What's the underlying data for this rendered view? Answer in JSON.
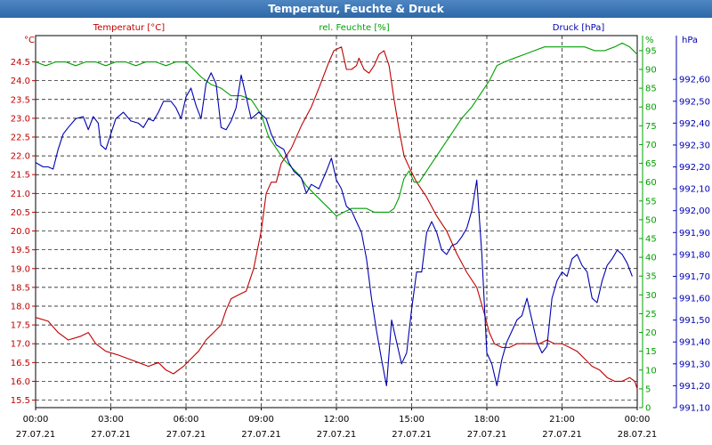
{
  "window_title": "Temperatur, Feuchte & Druck",
  "chart_data": {
    "type": "line",
    "title": "Temperatur, Feuchte & Druck",
    "x_unit": "hours since 27.07.21 00:00",
    "x_ticks": [
      {
        "time": "00:00",
        "date": "27.07.21"
      },
      {
        "time": "03:00",
        "date": "27.07.21"
      },
      {
        "time": "06:00",
        "date": "27.07.21"
      },
      {
        "time": "09:00",
        "date": "27.07.21"
      },
      {
        "time": "12:00",
        "date": "27.07.21"
      },
      {
        "time": "15:00",
        "date": "27.07.21"
      },
      {
        "time": "18:00",
        "date": "27.07.21"
      },
      {
        "time": "21:00",
        "date": "27.07.21"
      },
      {
        "time": "00:00",
        "date": "28.07.21"
      }
    ],
    "xlim": [
      0,
      24
    ],
    "axes": {
      "left": {
        "unit": "°C",
        "label": "Temperatur [°C]",
        "ylim": [
          15.3,
          25.2
        ],
        "ticks": [
          "15.5",
          "16.0",
          "16.5",
          "17.0",
          "17.5",
          "18.0",
          "18.5",
          "19.0",
          "19.5",
          "20.0",
          "20.5",
          "21.0",
          "21.5",
          "22.0",
          "22.5",
          "23.0",
          "23.5",
          "24.0",
          "24.5"
        ],
        "color": "#c00000"
      },
      "mid": {
        "unit": "%",
        "label": "rel. Feuchte [%]",
        "ylim": [
          0,
          99
        ],
        "ticks": [
          "0",
          "5",
          "10",
          "15",
          "20",
          "25",
          "30",
          "35",
          "40",
          "45",
          "50",
          "55",
          "60",
          "65",
          "70",
          "75",
          "80",
          "85",
          "90",
          "95"
        ],
        "color": "#00a000"
      },
      "right": {
        "unit": "hPa",
        "label": "Druck [hPa]",
        "ylim": [
          991.1,
          992.8
        ],
        "ticks": [
          "991,10",
          "991,20",
          "991,30",
          "991,40",
          "991,50",
          "991,60",
          "991,70",
          "991,80",
          "991,90",
          "992,00",
          "992,10",
          "992,20",
          "992,30",
          "992,40",
          "992,50",
          "992,60"
        ],
        "color": "#0000b0"
      }
    },
    "grid": true,
    "series": [
      {
        "name": "Temperatur [°C]",
        "axis": "left",
        "color": "#c00000",
        "points": [
          [
            0,
            17.7
          ],
          [
            0.5,
            17.6
          ],
          [
            0.9,
            17.3
          ],
          [
            1.3,
            17.1
          ],
          [
            1.8,
            17.2
          ],
          [
            2.1,
            17.3
          ],
          [
            2.4,
            17.0
          ],
          [
            2.8,
            16.8
          ],
          [
            3.3,
            16.7
          ],
          [
            3.7,
            16.6
          ],
          [
            4.1,
            16.5
          ],
          [
            4.5,
            16.4
          ],
          [
            4.9,
            16.5
          ],
          [
            5.2,
            16.3
          ],
          [
            5.5,
            16.2
          ],
          [
            5.9,
            16.4
          ],
          [
            6.2,
            16.6
          ],
          [
            6.5,
            16.8
          ],
          [
            6.8,
            17.1
          ],
          [
            7.1,
            17.3
          ],
          [
            7.4,
            17.5
          ],
          [
            7.6,
            17.9
          ],
          [
            7.8,
            18.2
          ],
          [
            8.1,
            18.3
          ],
          [
            8.4,
            18.4
          ],
          [
            8.7,
            19.0
          ],
          [
            9.0,
            20.0
          ],
          [
            9.2,
            21.0
          ],
          [
            9.4,
            21.3
          ],
          [
            9.6,
            21.3
          ],
          [
            9.8,
            21.8
          ],
          [
            10.2,
            22.2
          ],
          [
            10.6,
            22.8
          ],
          [
            11.0,
            23.3
          ],
          [
            11.3,
            23.8
          ],
          [
            11.7,
            24.5
          ],
          [
            11.9,
            24.8
          ],
          [
            12.2,
            24.9
          ],
          [
            12.4,
            24.3
          ],
          [
            12.6,
            24.3
          ],
          [
            12.8,
            24.4
          ],
          [
            12.9,
            24.6
          ],
          [
            13.1,
            24.3
          ],
          [
            13.3,
            24.2
          ],
          [
            13.5,
            24.4
          ],
          [
            13.7,
            24.7
          ],
          [
            13.9,
            24.8
          ],
          [
            14.1,
            24.4
          ],
          [
            14.3,
            23.5
          ],
          [
            14.5,
            22.7
          ],
          [
            14.7,
            22.0
          ],
          [
            14.9,
            21.7
          ],
          [
            15.2,
            21.3
          ],
          [
            15.6,
            20.9
          ],
          [
            16.0,
            20.4
          ],
          [
            16.4,
            20.0
          ],
          [
            16.8,
            19.4
          ],
          [
            17.2,
            18.9
          ],
          [
            17.6,
            18.5
          ],
          [
            17.9,
            17.8
          ],
          [
            18.1,
            17.3
          ],
          [
            18.3,
            17.0
          ],
          [
            18.6,
            16.9
          ],
          [
            18.9,
            16.9
          ],
          [
            19.2,
            17.0
          ],
          [
            19.5,
            17.0
          ],
          [
            19.8,
            17.0
          ],
          [
            20.1,
            17.0
          ],
          [
            20.4,
            17.1
          ],
          [
            20.7,
            17.0
          ],
          [
            21.0,
            17.0
          ],
          [
            21.3,
            16.9
          ],
          [
            21.6,
            16.8
          ],
          [
            21.9,
            16.6
          ],
          [
            22.2,
            16.4
          ],
          [
            22.5,
            16.3
          ],
          [
            22.8,
            16.1
          ],
          [
            23.1,
            16.0
          ],
          [
            23.4,
            16.0
          ],
          [
            23.7,
            16.1
          ],
          [
            23.9,
            16.0
          ],
          [
            24.0,
            15.8
          ]
        ]
      },
      {
        "name": "rel. Feuchte [%]",
        "axis": "mid",
        "color": "#00a000",
        "points": [
          [
            0,
            92
          ],
          [
            0.4,
            91
          ],
          [
            0.8,
            92
          ],
          [
            1.2,
            92
          ],
          [
            1.6,
            91
          ],
          [
            2.0,
            92
          ],
          [
            2.4,
            92
          ],
          [
            2.8,
            91
          ],
          [
            3.2,
            92
          ],
          [
            3.6,
            92
          ],
          [
            4.0,
            91
          ],
          [
            4.4,
            92
          ],
          [
            4.8,
            92
          ],
          [
            5.2,
            91
          ],
          [
            5.6,
            92
          ],
          [
            6.0,
            92
          ],
          [
            6.3,
            90
          ],
          [
            6.6,
            88
          ],
          [
            7.0,
            86
          ],
          [
            7.4,
            85
          ],
          [
            7.8,
            83
          ],
          [
            8.2,
            83
          ],
          [
            8.6,
            82
          ],
          [
            9.0,
            78
          ],
          [
            9.3,
            72
          ],
          [
            9.6,
            69
          ],
          [
            9.9,
            66
          ],
          [
            10.2,
            64
          ],
          [
            10.5,
            62
          ],
          [
            10.8,
            59
          ],
          [
            11.1,
            57
          ],
          [
            11.4,
            55
          ],
          [
            11.7,
            53
          ],
          [
            12.0,
            51
          ],
          [
            12.3,
            52
          ],
          [
            12.6,
            53
          ],
          [
            12.9,
            53
          ],
          [
            13.2,
            53
          ],
          [
            13.5,
            52
          ],
          [
            13.8,
            52
          ],
          [
            14.1,
            52
          ],
          [
            14.3,
            53
          ],
          [
            14.5,
            56
          ],
          [
            14.7,
            61
          ],
          [
            14.9,
            63
          ],
          [
            15.1,
            60
          ],
          [
            15.3,
            60
          ],
          [
            15.5,
            62
          ],
          [
            15.8,
            65
          ],
          [
            16.2,
            69
          ],
          [
            16.6,
            73
          ],
          [
            17.0,
            77
          ],
          [
            17.4,
            80
          ],
          [
            17.8,
            84
          ],
          [
            18.1,
            87
          ],
          [
            18.4,
            91
          ],
          [
            18.7,
            92
          ],
          [
            19.1,
            93
          ],
          [
            19.5,
            94
          ],
          [
            19.9,
            95
          ],
          [
            20.3,
            96
          ],
          [
            20.7,
            96
          ],
          [
            21.1,
            96
          ],
          [
            21.5,
            96
          ],
          [
            21.9,
            96
          ],
          [
            22.3,
            95
          ],
          [
            22.7,
            95
          ],
          [
            23.1,
            96
          ],
          [
            23.4,
            97
          ],
          [
            23.7,
            96
          ],
          [
            24.0,
            94
          ]
        ]
      },
      {
        "name": "Druck [hPa]",
        "axis": "right",
        "color": "#0000b0",
        "points": [
          [
            0,
            992.22
          ],
          [
            0.3,
            992.2
          ],
          [
            0.5,
            992.2
          ],
          [
            0.7,
            992.19
          ],
          [
            0.9,
            992.28
          ],
          [
            1.1,
            992.35
          ],
          [
            1.3,
            992.38
          ],
          [
            1.6,
            992.42
          ],
          [
            1.9,
            992.43
          ],
          [
            2.1,
            992.37
          ],
          [
            2.3,
            992.43
          ],
          [
            2.5,
            992.4
          ],
          [
            2.6,
            992.3
          ],
          [
            2.8,
            992.28
          ],
          [
            3.0,
            992.35
          ],
          [
            3.2,
            992.42
          ],
          [
            3.5,
            992.45
          ],
          [
            3.8,
            992.41
          ],
          [
            4.1,
            992.4
          ],
          [
            4.3,
            992.38
          ],
          [
            4.5,
            992.42
          ],
          [
            4.7,
            992.41
          ],
          [
            4.9,
            992.45
          ],
          [
            5.1,
            992.5
          ],
          [
            5.4,
            992.5
          ],
          [
            5.6,
            992.47
          ],
          [
            5.8,
            992.42
          ],
          [
            6.0,
            992.52
          ],
          [
            6.2,
            992.56
          ],
          [
            6.4,
            992.48
          ],
          [
            6.6,
            992.42
          ],
          [
            6.8,
            992.58
          ],
          [
            7.0,
            992.63
          ],
          [
            7.2,
            992.58
          ],
          [
            7.4,
            992.38
          ],
          [
            7.6,
            992.37
          ],
          [
            7.8,
            992.41
          ],
          [
            8.0,
            992.47
          ],
          [
            8.2,
            992.62
          ],
          [
            8.4,
            992.52
          ],
          [
            8.6,
            992.42
          ],
          [
            8.9,
            992.45
          ],
          [
            9.2,
            992.42
          ],
          [
            9.4,
            992.35
          ],
          [
            9.6,
            992.3
          ],
          [
            9.9,
            992.28
          ],
          [
            10.1,
            992.22
          ],
          [
            10.3,
            992.18
          ],
          [
            10.6,
            992.15
          ],
          [
            10.8,
            992.08
          ],
          [
            11.0,
            992.12
          ],
          [
            11.3,
            992.1
          ],
          [
            11.6,
            992.18
          ],
          [
            11.8,
            992.24
          ],
          [
            12.0,
            992.14
          ],
          [
            12.2,
            992.1
          ],
          [
            12.4,
            992.02
          ],
          [
            12.6,
            992.0
          ],
          [
            12.8,
            991.95
          ],
          [
            13.0,
            991.9
          ],
          [
            13.2,
            991.78
          ],
          [
            13.4,
            991.6
          ],
          [
            13.6,
            991.45
          ],
          [
            13.8,
            991.32
          ],
          [
            14.0,
            991.2
          ],
          [
            14.2,
            991.5
          ],
          [
            14.4,
            991.4
          ],
          [
            14.6,
            991.3
          ],
          [
            14.8,
            991.35
          ],
          [
            15.0,
            991.55
          ],
          [
            15.2,
            991.72
          ],
          [
            15.4,
            991.72
          ],
          [
            15.6,
            991.9
          ],
          [
            15.8,
            991.95
          ],
          [
            16.0,
            991.9
          ],
          [
            16.2,
            991.82
          ],
          [
            16.4,
            991.8
          ],
          [
            16.6,
            991.84
          ],
          [
            16.8,
            991.85
          ],
          [
            17.0,
            991.88
          ],
          [
            17.2,
            991.92
          ],
          [
            17.4,
            992.0
          ],
          [
            17.6,
            992.14
          ],
          [
            17.8,
            991.8
          ],
          [
            18.0,
            991.35
          ],
          [
            18.2,
            991.3
          ],
          [
            18.4,
            991.2
          ],
          [
            18.6,
            991.32
          ],
          [
            18.8,
            991.4
          ],
          [
            19.0,
            991.45
          ],
          [
            19.2,
            991.5
          ],
          [
            19.4,
            991.52
          ],
          [
            19.6,
            991.6
          ],
          [
            19.8,
            991.5
          ],
          [
            20.0,
            991.4
          ],
          [
            20.2,
            991.35
          ],
          [
            20.4,
            991.38
          ],
          [
            20.6,
            991.6
          ],
          [
            20.8,
            991.68
          ],
          [
            21.0,
            991.72
          ],
          [
            21.2,
            991.7
          ],
          [
            21.4,
            991.78
          ],
          [
            21.6,
            991.8
          ],
          [
            21.8,
            991.75
          ],
          [
            22.0,
            991.72
          ],
          [
            22.2,
            991.6
          ],
          [
            22.4,
            991.58
          ],
          [
            22.6,
            991.68
          ],
          [
            22.8,
            991.75
          ],
          [
            23.0,
            991.78
          ],
          [
            23.2,
            991.82
          ],
          [
            23.4,
            991.8
          ],
          [
            23.6,
            991.76
          ],
          [
            23.8,
            991.7
          ]
        ]
      }
    ]
  }
}
